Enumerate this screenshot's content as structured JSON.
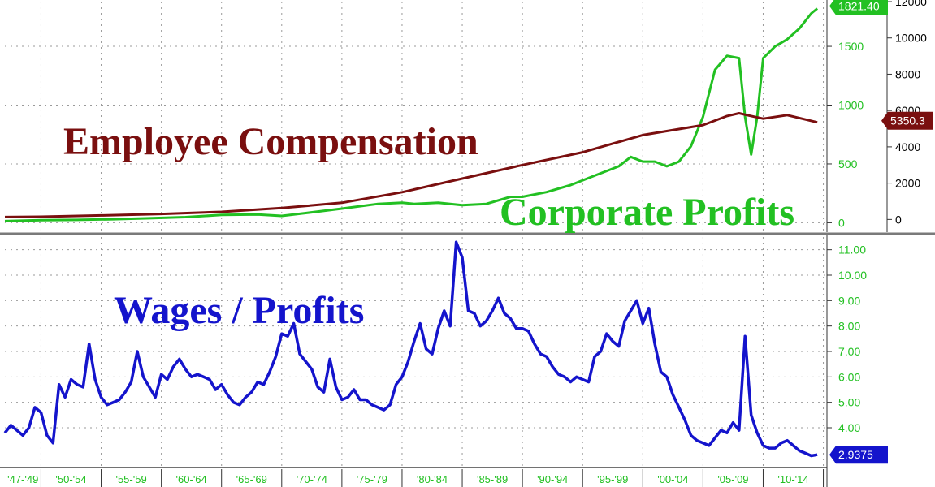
{
  "chart_data": [
    {
      "type": "line",
      "panel": "top",
      "titles": [
        {
          "text": "Employee Compensation",
          "color": "#7a0f0f"
        },
        {
          "text": "Corporate Profits",
          "color": "#22c022"
        }
      ],
      "y_left": {
        "ticks": [
          0,
          500,
          1000,
          1500
        ],
        "labels": [
          "0",
          "500",
          "1000",
          "1500"
        ],
        "color": "#22c022",
        "ylim": [
          -80,
          1880
        ]
      },
      "y_right": {
        "ticks": [
          0,
          2000,
          4000,
          6000,
          8000,
          10000,
          12000
        ],
        "labels": [
          "0",
          "2000",
          "4000",
          "6000",
          "8000",
          "10000",
          "12000"
        ],
        "color": "#000000",
        "ylim": [
          -700,
          12000
        ]
      },
      "grid": true,
      "x_start": 1947,
      "series": [
        {
          "name": "Corporate Profits",
          "color": "#22c022",
          "axis": "left",
          "last_value_label": "1821.40",
          "x": [
            1947,
            1950,
            1953,
            1956,
            1959,
            1962,
            1965,
            1968,
            1970,
            1972,
            1975,
            1978,
            1980,
            1981,
            1983,
            1985,
            1987,
            1989,
            1990,
            1992,
            1994,
            1996,
            1998,
            1999,
            2000,
            2001,
            2002,
            2003,
            2004,
            2005,
            2006,
            2007,
            2008,
            2008.5,
            2009,
            2009.5,
            2010,
            2011,
            2012,
            2013,
            2014,
            2014.5
          ],
          "y": [
            14,
            22,
            24,
            30,
            38,
            48,
            66,
            70,
            58,
            82,
            120,
            160,
            170,
            160,
            170,
            150,
            160,
            220,
            220,
            260,
            320,
            400,
            480,
            560,
            520,
            520,
            480,
            520,
            650,
            900,
            1300,
            1420,
            1400,
            900,
            580,
            900,
            1400,
            1500,
            1560,
            1650,
            1780,
            1821.4
          ]
        },
        {
          "name": "Employee Compensation",
          "color": "#7a0f0f",
          "axis": "right",
          "last_value_label": "5350.3",
          "x": [
            1947,
            1950,
            1955,
            1960,
            1965,
            1970,
            1975,
            1980,
            1985,
            1990,
            1995,
            2000,
            2005,
            2007,
            2008,
            2009,
            2010,
            2012,
            2014.5
          ],
          "y": [
            130,
            150,
            220,
            300,
            420,
            630,
            920,
            1500,
            2250,
            3000,
            3700,
            4650,
            5200,
            5700,
            5850,
            5700,
            5550,
            5750,
            5350.3
          ]
        }
      ]
    },
    {
      "type": "line",
      "panel": "bottom",
      "title": "Wages / Profits",
      "title_color": "#1414cc",
      "y_left": {
        "ticks": [
          4,
          5,
          6,
          7,
          8,
          9,
          10,
          11
        ],
        "labels": [
          "4.00",
          "5.00",
          "6.00",
          "7.00",
          "8.00",
          "9.00",
          "10.00",
          "11.00"
        ],
        "color": "#22c022",
        "ylim": [
          2.5,
          11.5
        ]
      },
      "grid": true,
      "x_ticks": [
        1947,
        1950,
        1955,
        1960,
        1965,
        1970,
        1975,
        1980,
        1985,
        1990,
        1995,
        2000,
        2005,
        2010,
        2015
      ],
      "x_tick_labels": [
        "'47-'49",
        "'50-'54",
        "'55-'59",
        "'60-'64",
        "'65-'69",
        "'70-'74",
        "'75-'79",
        "'80-'84",
        "'85-'89",
        "'90-'94",
        "'95-'99",
        "'00-'04",
        "'05-'09",
        "'10-'14"
      ],
      "series": [
        {
          "name": "Wages / Profits",
          "color": "#1414cc",
          "last_value_label": "2.9375",
          "x": [
            1947,
            1947.5,
            1948,
            1948.5,
            1949,
            1949.5,
            1950,
            1950.5,
            1951,
            1951.5,
            1952,
            1952.5,
            1953,
            1953.5,
            1954,
            1954.5,
            1955,
            1955.5,
            1956,
            1956.5,
            1957,
            1957.5,
            1958,
            1958.5,
            1959,
            1959.5,
            1960,
            1960.5,
            1961,
            1961.5,
            1962,
            1962.5,
            1963,
            1963.5,
            1964,
            1964.5,
            1965,
            1965.5,
            1966,
            1966.5,
            1967,
            1967.5,
            1968,
            1968.5,
            1969,
            1969.5,
            1970,
            1970.5,
            1971,
            1971.5,
            1972,
            1972.5,
            1973,
            1973.5,
            1974,
            1974.5,
            1975,
            1975.5,
            1976,
            1976.5,
            1977,
            1977.5,
            1978,
            1978.5,
            1979,
            1979.5,
            1980,
            1980.5,
            1981,
            1981.5,
            1982,
            1982.5,
            1983,
            1983.5,
            1984,
            1984.5,
            1985,
            1985.5,
            1986,
            1986.5,
            1987,
            1987.5,
            1988,
            1988.5,
            1989,
            1989.5,
            1990,
            1990.5,
            1991,
            1991.5,
            1992,
            1992.5,
            1993,
            1993.5,
            1994,
            1994.5,
            1995,
            1995.5,
            1996,
            1996.5,
            1997,
            1997.5,
            1998,
            1998.5,
            1999,
            1999.5,
            2000,
            2000.5,
            2001,
            2001.5,
            2002,
            2002.5,
            2003,
            2003.5,
            2004,
            2004.5,
            2005,
            2005.5,
            2006,
            2006.5,
            2007,
            2007.5,
            2008,
            2008.5,
            2009,
            2009.5,
            2010,
            2010.5,
            2011,
            2011.5,
            2012,
            2012.5,
            2013,
            2013.5,
            2014,
            2014.5
          ],
          "y": [
            3.8,
            4.1,
            3.9,
            3.7,
            4.0,
            4.8,
            4.6,
            3.7,
            3.4,
            5.7,
            5.2,
            5.9,
            5.7,
            5.6,
            7.3,
            5.9,
            5.2,
            4.9,
            5.0,
            5.1,
            5.4,
            5.8,
            7.0,
            6.0,
            5.6,
            5.2,
            6.1,
            5.9,
            6.4,
            6.7,
            6.3,
            6.0,
            6.1,
            6.0,
            5.9,
            5.5,
            5.7,
            5.3,
            5.0,
            4.9,
            5.2,
            5.4,
            5.8,
            5.7,
            6.2,
            6.8,
            7.7,
            7.6,
            8.1,
            6.9,
            6.6,
            6.3,
            5.6,
            5.4,
            6.7,
            5.6,
            5.1,
            5.2,
            5.5,
            5.1,
            5.1,
            4.9,
            4.8,
            4.7,
            4.9,
            5.7,
            6.0,
            6.6,
            7.4,
            8.1,
            7.1,
            6.9,
            7.9,
            8.6,
            8.0,
            11.3,
            10.7,
            8.6,
            8.5,
            8.0,
            8.2,
            8.6,
            9.1,
            8.5,
            8.3,
            7.9,
            7.9,
            7.8,
            7.3,
            6.9,
            6.8,
            6.4,
            6.1,
            6.0,
            5.8,
            6.0,
            5.9,
            5.8,
            6.8,
            7.0,
            7.7,
            7.4,
            7.2,
            8.2,
            8.6,
            9.0,
            8.1,
            8.7,
            7.3,
            6.2,
            6.0,
            5.3,
            4.8,
            4.3,
            3.7,
            3.5,
            3.4,
            3.3,
            3.6,
            3.9,
            3.8,
            4.2,
            3.9,
            7.6,
            4.5,
            3.8,
            3.3,
            3.2,
            3.2,
            3.4,
            3.5,
            3.3,
            3.1,
            3.0,
            2.9,
            2.94
          ]
        }
      ]
    }
  ]
}
